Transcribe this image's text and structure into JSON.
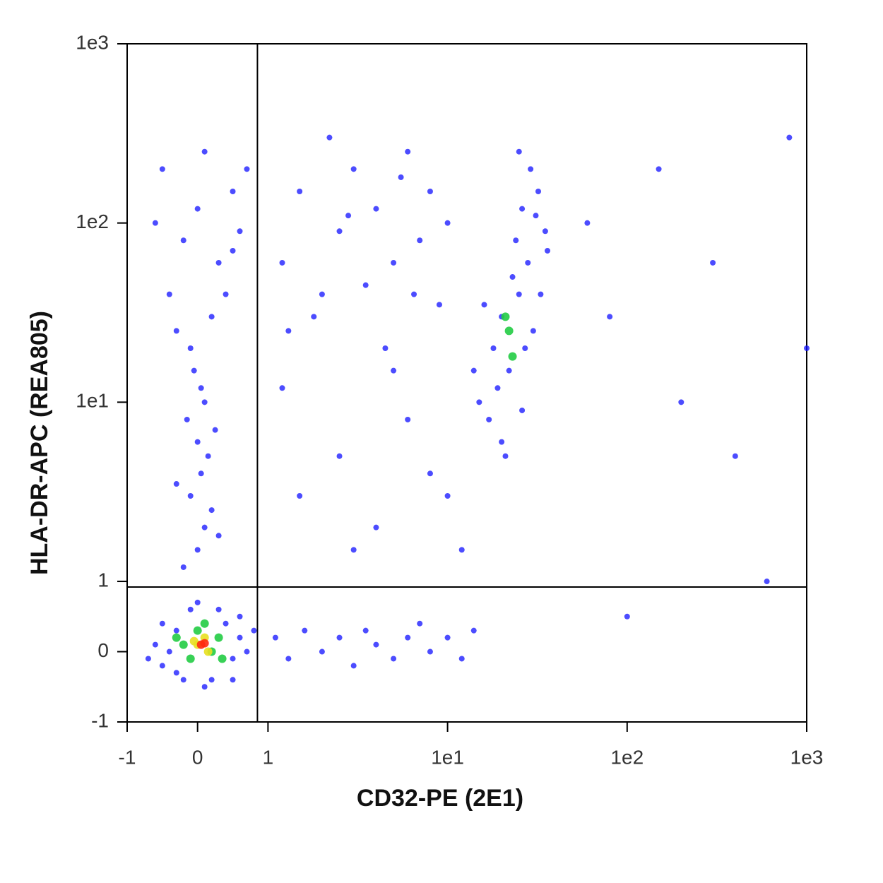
{
  "chart_data": {
    "type": "scatter",
    "x_label": "CD32-PE (2E1)",
    "y_label": "HLA-DR-APC (REA805)",
    "xscale": "biexponential",
    "yscale": "biexponential",
    "xlim": [
      -1,
      1000
    ],
    "ylim": [
      -1,
      1000
    ],
    "xticks": [
      -1,
      0,
      1,
      {
        "value": 10,
        "label": "1e1"
      },
      {
        "value": 100,
        "label": "1e2"
      },
      {
        "value": 1000,
        "label": "1e3"
      }
    ],
    "yticks": [
      -1,
      0,
      1,
      {
        "value": 10,
        "label": "1e1"
      },
      {
        "value": 100,
        "label": "1e2"
      },
      {
        "value": 1000,
        "label": "1e3"
      }
    ],
    "gates": {
      "x": 0.85,
      "y": 0.92
    },
    "series": [
      {
        "color": "#1010ff",
        "x": [
          -0.4,
          -0.3,
          -0.5,
          0.4,
          0.5,
          0.6,
          -0.2,
          0.2,
          0.7,
          -0.6,
          0.3,
          -0.1,
          0.6,
          -0.5,
          0.1,
          0.5,
          -0.3,
          0.8,
          -0.7,
          0.0,
          0.0,
          0.1,
          -0.1,
          0.05,
          0.2,
          -0.2,
          0.15,
          0,
          -0.15,
          0.1,
          0.3,
          -0.3,
          0.25,
          0.05,
          -0.05,
          -0.4,
          -0.2,
          0,
          0.3,
          0.5,
          -0.5,
          0.2,
          0.6,
          -0.3,
          0.1,
          0.4,
          0.7,
          -0.1,
          0.5,
          -0.6,
          1.2,
          1.5,
          2,
          2.5,
          3,
          1.8,
          4,
          5,
          6,
          3.5,
          7,
          8,
          2.2,
          1.3,
          9,
          4.5,
          5.5,
          2.8,
          6.5,
          10,
          15,
          18,
          20,
          22,
          25,
          28,
          30,
          17,
          24,
          26,
          32,
          20,
          23,
          27,
          19,
          35,
          29,
          16,
          21,
          33,
          25,
          31,
          14,
          26,
          36,
          1.1,
          1.3,
          1.6,
          2,
          2.5,
          3,
          3.5,
          4,
          5,
          6,
          7,
          8,
          10,
          12,
          14,
          1.5,
          2.5,
          4,
          6,
          8,
          1.2,
          3,
          5,
          10,
          12,
          60,
          80,
          100,
          150,
          200,
          300,
          400,
          600,
          800,
          1000
        ],
        "values": [
          0.0,
          0.3,
          -0.2,
          0.4,
          -0.1,
          0.2,
          -0.4,
          -0.4,
          0.0,
          0.1,
          0.6,
          0.6,
          0.5,
          0.4,
          -0.5,
          -0.4,
          -0.3,
          0.3,
          -0.1,
          0.7,
          1.5,
          2,
          3,
          4,
          2.5,
          1.2,
          5,
          6,
          8,
          10,
          1.8,
          3.5,
          7,
          12,
          15,
          40,
          80,
          120,
          60,
          150,
          200,
          30,
          90,
          25,
          250,
          40,
          200,
          20,
          70,
          100,
          60,
          150,
          40,
          90,
          200,
          30,
          120,
          60,
          250,
          45,
          80,
          150,
          300,
          25,
          35,
          20,
          180,
          110,
          40,
          100,
          10,
          20,
          30,
          15,
          40,
          60,
          25,
          8,
          80,
          120,
          150,
          6,
          50,
          20,
          12,
          90,
          200,
          35,
          5,
          40,
          250,
          110,
          15,
          9,
          70,
          0.2,
          -0.1,
          0.3,
          0.0,
          0.2,
          -0.2,
          0.3,
          0.1,
          -0.1,
          0.2,
          0.4,
          0.0,
          0.2,
          -0.1,
          0.3,
          3,
          5,
          2,
          8,
          4,
          12,
          1.5,
          15,
          3,
          1.5,
          100,
          30,
          0.5,
          200,
          10,
          60,
          5,
          1,
          300,
          20
        ]
      },
      {
        "color": "#22cc44",
        "x": [
          -0.2,
          0,
          0.2,
          0.3,
          -0.1,
          0.1,
          0.35,
          -0.3,
          22,
          23,
          21
        ],
        "values": [
          0.1,
          0.3,
          0.0,
          0.2,
          -0.1,
          0.4,
          -0.1,
          0.2,
          25,
          18,
          30
        ]
      },
      {
        "color": "#e8e020",
        "x": [
          0,
          0.1,
          0.15,
          -0.05
        ],
        "values": [
          0.1,
          0.2,
          0.0,
          0.15
        ]
      },
      {
        "color": "#ff2a10",
        "x": [
          0.05,
          0.1
        ],
        "values": [
          0.1,
          0.12
        ]
      }
    ]
  }
}
